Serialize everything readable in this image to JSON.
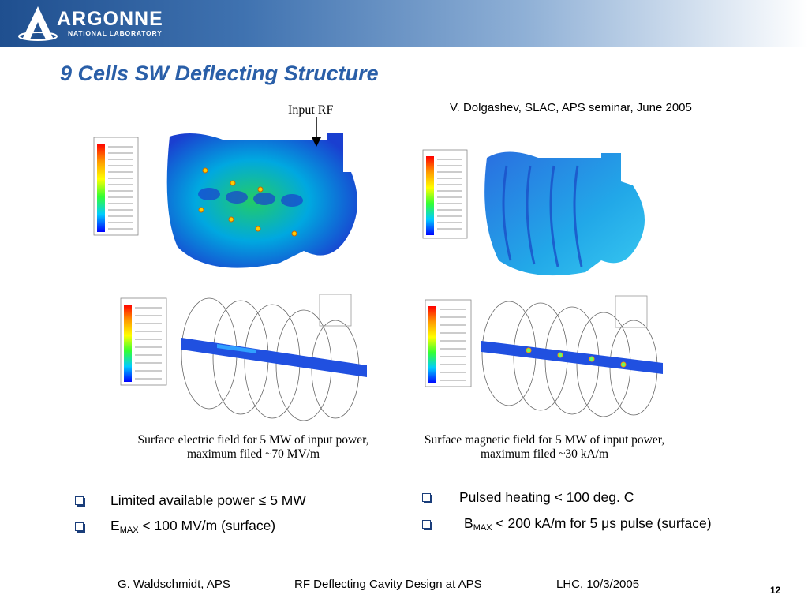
{
  "header": {
    "logo_text": "ARGONNE",
    "logo_subtext": "NATIONAL LABORATORY"
  },
  "slide": {
    "title": "9 Cells SW Deflecting Structure",
    "credit": "V. Dolgashev, SLAC, APS seminar, June 2005",
    "figure_label": "Input RF"
  },
  "captions": {
    "left_line1": "Surface electric field for 5 MW of input power,",
    "left_line2": "maximum filed ~70 MV/m",
    "right_line1": "Surface magnetic field for 5 MW of input power,",
    "right_line2": "maximum filed ~30 kA/m"
  },
  "bullets_left": [
    {
      "text": "Limited available power ≤ 5 MW"
    },
    {
      "prefix": "E",
      "sub": "MAX",
      "suffix": " < 100 MV/m (surface)"
    }
  ],
  "bullets_right": [
    {
      "text": "Pulsed heating < 100 deg. C"
    },
    {
      "prefix": "B",
      "sub": "MAX",
      "suffix": " < 200 kA/m for 5 μs pulse (surface)"
    }
  ],
  "footer": {
    "author": "G. Waldschmidt, APS",
    "talk": "RF Deflecting Cavity Design at APS",
    "venue": "LHC, 10/3/2005",
    "page": "12"
  },
  "colors": {
    "title": "#2a5fa8",
    "bullet_icon": "#1a3d7a",
    "header_dark": "#1f4f8f"
  }
}
